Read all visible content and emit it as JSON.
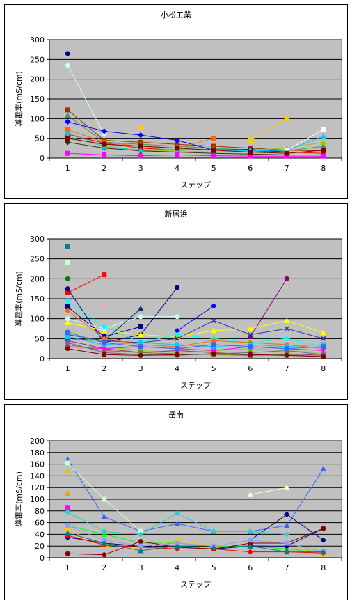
{
  "chart_data": [
    {
      "type": "line",
      "title": "小松工業",
      "xlabel": "ステップ",
      "ylabel": "導電率(mS/cm)",
      "categories": [
        "1",
        "2",
        "3",
        "4",
        "5",
        "6",
        "7",
        "8"
      ],
      "ylim": [
        0,
        300
      ],
      "yticks": [
        0,
        50,
        100,
        150,
        200,
        250,
        300
      ],
      "grid": true,
      "series": [
        {
          "color": "#000080",
          "marker": "circle",
          "values": [
            265,
            null,
            null,
            null,
            null,
            null,
            null,
            null
          ]
        },
        {
          "color": "#ccffff",
          "marker": "diamond",
          "values": [
            235,
            60,
            null,
            null,
            null,
            null,
            null,
            null
          ]
        },
        {
          "color": "#993300",
          "marker": "square",
          "values": [
            122,
            45,
            40,
            35,
            30,
            25,
            20,
            18
          ]
        },
        {
          "color": "#339966",
          "marker": "triangle",
          "values": [
            108,
            40,
            35,
            30,
            25,
            20,
            18,
            30
          ]
        },
        {
          "color": "#0000ff",
          "marker": "diamond",
          "values": [
            92,
            68,
            58,
            45,
            20,
            22,
            15,
            null
          ]
        },
        {
          "color": "#ff6600",
          "marker": "square",
          "values": [
            72,
            40,
            30,
            25,
            50,
            null,
            null,
            null
          ]
        },
        {
          "color": "#ffcc00",
          "marker": "square",
          "values": [
            null,
            null,
            78,
            null,
            null,
            45,
            100,
            null
          ]
        },
        {
          "color": "#ff0000",
          "marker": "triangle",
          "values": [
            60,
            38,
            25,
            20,
            22,
            18,
            15,
            12
          ]
        },
        {
          "color": "#99cc00",
          "marker": "triangle",
          "values": [
            55,
            30,
            20,
            18,
            15,
            20,
            25,
            40
          ]
        },
        {
          "color": "#333300",
          "marker": "diamond",
          "values": [
            40,
            25,
            18,
            15,
            12,
            10,
            8,
            8
          ]
        },
        {
          "color": "#ff00ff",
          "marker": "square",
          "values": [
            12,
            8,
            6,
            8,
            6,
            5,
            5,
            5
          ]
        },
        {
          "color": "#00ccff",
          "marker": "triangle",
          "values": [
            65,
            28,
            20,
            22,
            20,
            18,
            20,
            55
          ]
        },
        {
          "color": "#ffffff",
          "marker": "square",
          "values": [
            null,
            null,
            null,
            null,
            null,
            null,
            20,
            72
          ]
        },
        {
          "color": "#800000",
          "marker": "square",
          "values": [
            50,
            35,
            30,
            25,
            20,
            15,
            12,
            20
          ]
        }
      ]
    },
    {
      "type": "line",
      "title": "新居浜",
      "xlabel": "ステップ",
      "ylabel": "導電率(mS/cm)",
      "categories": [
        "1",
        "2",
        "3",
        "4",
        "5",
        "6",
        "7",
        "8"
      ],
      "ylim": [
        0,
        300
      ],
      "yticks": [
        0,
        50,
        100,
        150,
        200,
        250,
        300
      ],
      "grid": true,
      "series": [
        {
          "color": "#008080",
          "marker": "square",
          "values": [
            280,
            null,
            null,
            null,
            null,
            null,
            null,
            null
          ]
        },
        {
          "color": "#ccffcc",
          "marker": "square",
          "values": [
            240,
            null,
            null,
            null,
            null,
            null,
            null,
            null
          ]
        },
        {
          "color": "#008000",
          "marker": "circle",
          "values": [
            200,
            null,
            null,
            null,
            null,
            null,
            null,
            null
          ]
        },
        {
          "color": "#ff0000",
          "marker": "square",
          "values": [
            165,
            210,
            null,
            null,
            null,
            null,
            null,
            null
          ]
        },
        {
          "color": "#000080",
          "marker": "circle",
          "values": [
            175,
            40,
            60,
            178,
            null,
            null,
            null,
            null
          ]
        },
        {
          "color": "#ff99cc",
          "marker": "diamond",
          "values": [
            null,
            135,
            null,
            null,
            null,
            null,
            null,
            null
          ]
        },
        {
          "color": "#000080",
          "marker": "square",
          "values": [
            130,
            55,
            80,
            null,
            null,
            null,
            null,
            null
          ]
        },
        {
          "color": "#800080",
          "marker": "circle",
          "values": [
            null,
            null,
            null,
            null,
            null,
            55,
            200,
            null
          ]
        },
        {
          "color": "#0000ff",
          "marker": "diamond",
          "values": [
            null,
            null,
            null,
            70,
            132,
            null,
            null,
            null
          ]
        },
        {
          "color": "#ffff00",
          "marker": "triangle",
          "values": [
            90,
            70,
            60,
            55,
            70,
            75,
            95,
            65
          ]
        },
        {
          "color": "#333399",
          "marker": "cross",
          "values": [
            60,
            45,
            40,
            50,
            95,
            60,
            75,
            50
          ]
        },
        {
          "color": "#ccffff",
          "marker": "circle",
          "values": [
            100,
            75,
            105,
            105,
            null,
            null,
            null,
            null
          ]
        },
        {
          "color": "#003366",
          "marker": "triangle",
          "values": [
            50,
            45,
            125,
            null,
            null,
            null,
            null,
            null
          ]
        },
        {
          "color": "#00ffff",
          "marker": "diamond",
          "values": [
            145,
            80,
            40,
            60,
            50,
            40,
            50,
            30
          ]
        },
        {
          "color": "#ff6600",
          "marker": "diamond",
          "values": [
            120,
            50,
            35,
            30,
            45,
            40,
            35,
            25
          ]
        },
        {
          "color": "#99cc00",
          "marker": "triangle",
          "values": [
            70,
            30,
            20,
            15,
            20,
            25,
            20,
            15
          ]
        },
        {
          "color": "#993366",
          "marker": "cross",
          "values": [
            45,
            25,
            15,
            20,
            15,
            10,
            12,
            8
          ]
        },
        {
          "color": "#00ccff",
          "marker": "square",
          "values": [
            55,
            35,
            40,
            35,
            30,
            35,
            30,
            35
          ]
        },
        {
          "color": "#808000",
          "marker": "triangle",
          "values": [
            35,
            20,
            15,
            12,
            10,
            8,
            10,
            5
          ]
        },
        {
          "color": "#ff00ff",
          "marker": "cross",
          "values": [
            30,
            25,
            30,
            25,
            20,
            30,
            25,
            20
          ]
        },
        {
          "color": "#666699",
          "marker": "diamond",
          "values": [
            40,
            15,
            10,
            8,
            12,
            15,
            20,
            10
          ]
        },
        {
          "color": "#3366ff",
          "marker": "square",
          "values": [
            65,
            40,
            30,
            25,
            35,
            30,
            25,
            30
          ]
        },
        {
          "color": "#800000",
          "marker": "circle",
          "values": [
            25,
            10,
            8,
            10,
            12,
            10,
            8,
            5
          ]
        }
      ]
    },
    {
      "type": "line",
      "title": "岳南",
      "xlabel": "ステップ",
      "ylabel": "導電率(mS/cm)",
      "categories": [
        "1",
        "2",
        "3",
        "4",
        "5",
        "6",
        "7",
        "8"
      ],
      "ylim": [
        0,
        200
      ],
      "yticks": [
        0,
        20,
        40,
        60,
        80,
        100,
        120,
        140,
        160,
        180,
        200
      ],
      "grid": true,
      "series": [
        {
          "color": "#3366ff",
          "marker": "triangle",
          "values": [
            168,
            70,
            45,
            58,
            45,
            45,
            55,
            152
          ]
        },
        {
          "color": "#ccffcc",
          "marker": "square",
          "values": [
            162,
            100,
            45,
            null,
            null,
            null,
            null,
            null
          ]
        },
        {
          "color": "#ffffcc",
          "marker": "triangle",
          "values": [
            null,
            null,
            null,
            null,
            null,
            108,
            120,
            null
          ]
        },
        {
          "color": "#cccc00",
          "marker": "triangle",
          "values": [
            148,
            null,
            null,
            null,
            null,
            null,
            null,
            null
          ]
        },
        {
          "color": "#ff9900",
          "marker": "triangle",
          "values": [
            110,
            null,
            null,
            null,
            null,
            null,
            null,
            null
          ]
        },
        {
          "color": "#000080",
          "marker": "diamond",
          "values": [
            null,
            null,
            null,
            null,
            null,
            30,
            74,
            30
          ]
        },
        {
          "color": "#ff00ff",
          "marker": "square",
          "values": [
            86,
            null,
            null,
            null,
            null,
            null,
            null,
            null
          ]
        },
        {
          "color": "#33cccc",
          "marker": "diamond",
          "values": [
            78,
            45,
            40,
            76,
            45,
            45,
            40,
            null
          ]
        },
        {
          "color": "#00ff00",
          "marker": "triangle",
          "values": [
            55,
            40,
            25,
            25,
            20,
            20,
            15,
            10
          ]
        },
        {
          "color": "#ffcc00",
          "marker": "circle",
          "values": [
            48,
            20,
            15,
            30,
            20,
            22,
            20,
            5
          ]
        },
        {
          "color": "#000080",
          "marker": "circle",
          "values": [
            35,
            25,
            20,
            18,
            15,
            20,
            20,
            50
          ]
        },
        {
          "color": "#800000",
          "marker": "circle",
          "values": [
            7,
            5,
            28,
            18,
            15,
            25,
            25,
            50
          ]
        },
        {
          "color": "#ff0000",
          "marker": "diamond",
          "values": [
            38,
            22,
            18,
            15,
            15,
            10,
            10,
            8
          ]
        },
        {
          "color": "#9999ff",
          "marker": "square",
          "values": [
            55,
            30,
            20,
            25,
            20,
            30,
            25,
            10
          ]
        },
        {
          "color": "#008080",
          "marker": "triangle",
          "values": [
            42,
            25,
            12,
            20,
            18,
            20,
            10,
            10
          ]
        }
      ]
    }
  ]
}
